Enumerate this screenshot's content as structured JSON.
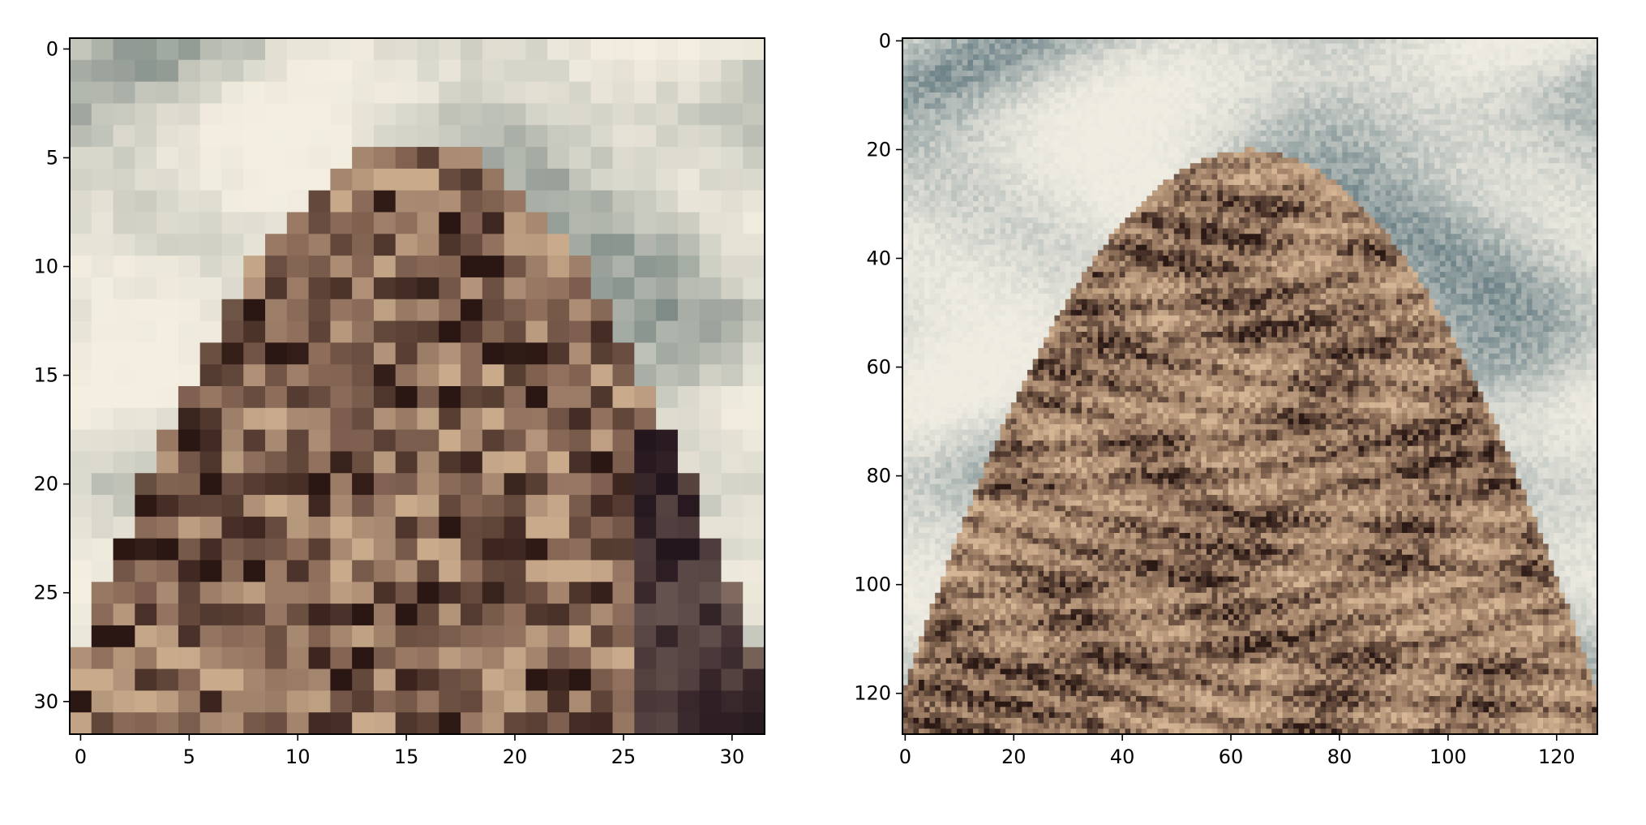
{
  "chart_data": [
    {
      "type": "heatmap",
      "title": "",
      "xlabel": "",
      "ylabel": "",
      "image_size": [
        32,
        32
      ],
      "xlim": [
        -0.5,
        31.5
      ],
      "ylim": [
        31.5,
        -0.5
      ],
      "x_ticks": [
        0,
        5,
        10,
        15,
        20,
        25,
        30
      ],
      "y_ticks": [
        0,
        5,
        10,
        15,
        20,
        25,
        30
      ],
      "x_tick_labels": [
        "0",
        "5",
        "10",
        "15",
        "20",
        "25",
        "30"
      ],
      "y_tick_labels": [
        "0",
        "5",
        "10",
        "15",
        "20",
        "25",
        "30"
      ],
      "grid": false,
      "content": "pixelated low-resolution photo of the top of an ornate patterned conical tower against a cloudy sky",
      "palette": {
        "sky_light": "#f3eee0",
        "sky_shadow": "#7f8b86",
        "stone_light": "#c9ab8c",
        "stone_mid": "#8a6a58",
        "stone_dark": "#2a1612",
        "shadow_purple": "#1f1624"
      }
    },
    {
      "type": "heatmap",
      "title": "",
      "xlabel": "",
      "ylabel": "",
      "image_size": [
        128,
        128
      ],
      "xlim": [
        -0.5,
        127.5
      ],
      "ylim": [
        127.5,
        -0.5
      ],
      "x_ticks": [
        0,
        20,
        40,
        60,
        80,
        100,
        120
      ],
      "y_ticks": [
        0,
        20,
        40,
        60,
        80,
        100,
        120
      ],
      "x_tick_labels": [
        "0",
        "20",
        "40",
        "60",
        "80",
        "100",
        "120"
      ],
      "y_tick_labels": [
        "0",
        "20",
        "40",
        "60",
        "80",
        "100",
        "120"
      ],
      "grid": false,
      "content": "higher-resolution version of the same tower top with zig-zag and diamond carved patterns, sky with blue-grey clouds",
      "palette": {
        "sky_light": "#efece2",
        "sky_shadow": "#6f8489",
        "stone_light": "#d4b594",
        "stone_mid": "#9c7c63",
        "stone_dark": "#2b1915"
      }
    }
  ]
}
